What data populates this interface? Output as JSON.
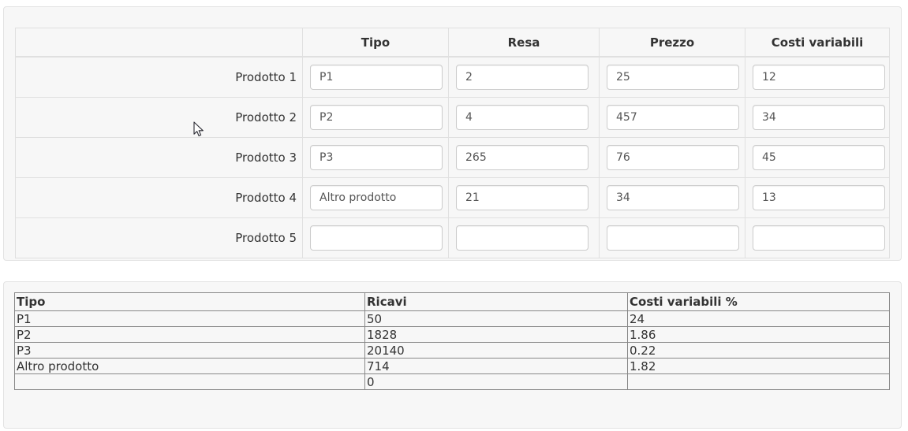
{
  "colors": {
    "panel_bg": "#f7f7f7",
    "panel_border": "#e3e3e3",
    "grid_border": "#e0e0e0",
    "input_border": "#cccccc",
    "results_border": "#888888",
    "text": "#333333",
    "input_text": "#555555"
  },
  "input_table": {
    "columns": {
      "tipo": "Tipo",
      "resa": "Resa",
      "prezzo": "Prezzo",
      "costi": "Costi variabili"
    },
    "rows": [
      {
        "label": "Prodotto 1",
        "tipo": "P1",
        "resa": "2",
        "prezzo": "25",
        "costi": "12"
      },
      {
        "label": "Prodotto 2",
        "tipo": "P2",
        "resa": "4",
        "prezzo": "457",
        "costi": "34"
      },
      {
        "label": "Prodotto 3",
        "tipo": "P3",
        "resa": "265",
        "prezzo": "76",
        "costi": "45"
      },
      {
        "label": "Prodotto 4",
        "tipo": "Altro prodotto",
        "resa": "21",
        "prezzo": "34",
        "costi": "13"
      },
      {
        "label": "Prodotto 5",
        "tipo": "",
        "resa": "",
        "prezzo": "",
        "costi": ""
      }
    ]
  },
  "results_table": {
    "columns": {
      "tipo": "Tipo",
      "ricavi": "Ricavi",
      "costi_pct": "Costi variabili %"
    },
    "rows": [
      {
        "tipo": "P1",
        "ricavi": "50",
        "costi_pct": "24"
      },
      {
        "tipo": "P2",
        "ricavi": "1828",
        "costi_pct": "1.86"
      },
      {
        "tipo": "P3",
        "ricavi": "20140",
        "costi_pct": "0.22"
      },
      {
        "tipo": "Altro prodotto",
        "ricavi": "714",
        "costi_pct": "1.82"
      },
      {
        "tipo": "",
        "ricavi": "0",
        "costi_pct": ""
      }
    ]
  }
}
